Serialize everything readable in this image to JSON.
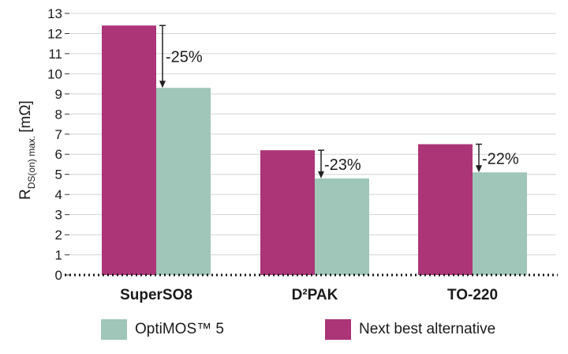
{
  "chart_data": {
    "type": "bar",
    "categories": [
      "SuperSO8",
      "D²PAK",
      "TO-220"
    ],
    "series": [
      {
        "name": "Next best alternative",
        "color": "#ab3577",
        "values": [
          12.4,
          6.2,
          6.5
        ]
      },
      {
        "name": "OptiMOS™ 5",
        "color": "#9fc6b8",
        "values": [
          9.3,
          4.8,
          5.1
        ]
      }
    ],
    "reductions": [
      "-25%",
      "-23%",
      "-22%"
    ],
    "ylabel": {
      "main": "R",
      "sub": "DS(on) max.",
      "unit": "[mΩ]"
    },
    "ylim": [
      0,
      13
    ],
    "yticks": [
      0,
      1,
      2,
      3,
      4,
      5,
      6,
      7,
      8,
      9,
      10,
      11,
      12,
      13
    ],
    "grid": true,
    "legend_position": "bottom"
  }
}
